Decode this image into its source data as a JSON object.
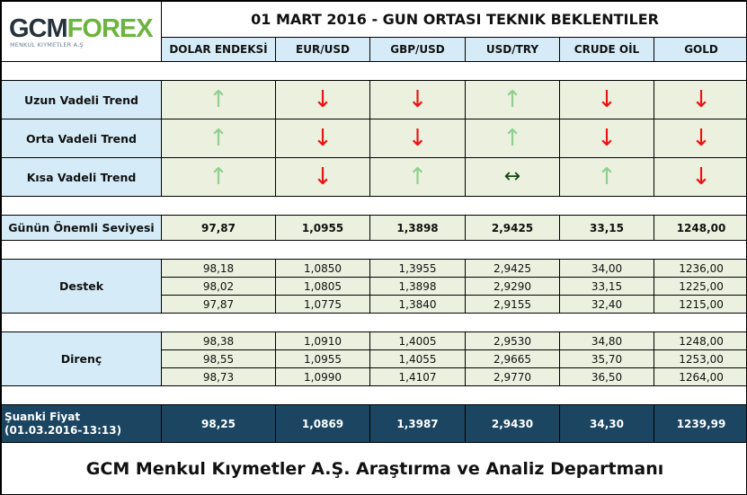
{
  "logo": {
    "text_dark": "GCM",
    "text_green": "FOREX",
    "subtitle": "MENKUL KIYMETLER A.Ş"
  },
  "title": "01 MART 2016 - GUN ORTASI TEKNIK BEKLENTILER",
  "columns": [
    "DOLAR ENDEKSİ",
    "EUR/USD",
    "GBP/USD",
    "USD/TRY",
    "CRUDE OİL",
    "GOLD"
  ],
  "trends": [
    {
      "label": "Uzun Vadeli Trend",
      "values": [
        "up",
        "down",
        "down",
        "up",
        "down",
        "down"
      ]
    },
    {
      "label": "Orta Vadeli Trend",
      "values": [
        "up",
        "down",
        "down",
        "up",
        "down",
        "down"
      ]
    },
    {
      "label": "Kısa Vadeli Trend",
      "values": [
        "up",
        "down",
        "up",
        "sideways",
        "up",
        "down"
      ]
    }
  ],
  "arrow_glyphs": {
    "up": "↑",
    "down": "↓",
    "sideways": "↔"
  },
  "key_level": {
    "label": "Günün Önemli Seviyesi",
    "values": [
      "97,87",
      "1,0955",
      "1,3898",
      "2,9425",
      "33,15",
      "1248,00"
    ]
  },
  "support": {
    "label": "Destek",
    "rows": [
      [
        "98,18",
        "1,0850",
        "1,3955",
        "2,9425",
        "34,00",
        "1236,00"
      ],
      [
        "98,02",
        "1,0805",
        "1,3898",
        "2,9290",
        "33,15",
        "1225,00"
      ],
      [
        "97,87",
        "1,0775",
        "1,3840",
        "2,9155",
        "32,40",
        "1215,00"
      ]
    ]
  },
  "resistance": {
    "label": "Direnç",
    "rows": [
      [
        "98,38",
        "1,0910",
        "1,4005",
        "2,9530",
        "34,80",
        "1248,00"
      ],
      [
        "98,55",
        "1,0955",
        "1,4055",
        "2,9665",
        "35,70",
        "1253,00"
      ],
      [
        "98,73",
        "1,0990",
        "1,4107",
        "2,9770",
        "36,50",
        "1264,00"
      ]
    ]
  },
  "current_price": {
    "label_line1": "Şuanki Fiyat",
    "label_line2": "(01.03.2016-13:13)",
    "values": [
      "98,25",
      "1,0869",
      "1,3987",
      "2,9430",
      "34,30",
      "1239,99"
    ]
  },
  "footer": "GCM Menkul Kıymetler A.Ş. Araştırma ve Analiz Departmanı",
  "colors": {
    "header_bg": "#d5ecf8",
    "cell_bg": "#ebf1de",
    "dark_row_bg": "#1b4560",
    "up_arrow": "#8fcf8f",
    "down_arrow": "#ee1111",
    "logo_green": "#6bb43f"
  }
}
